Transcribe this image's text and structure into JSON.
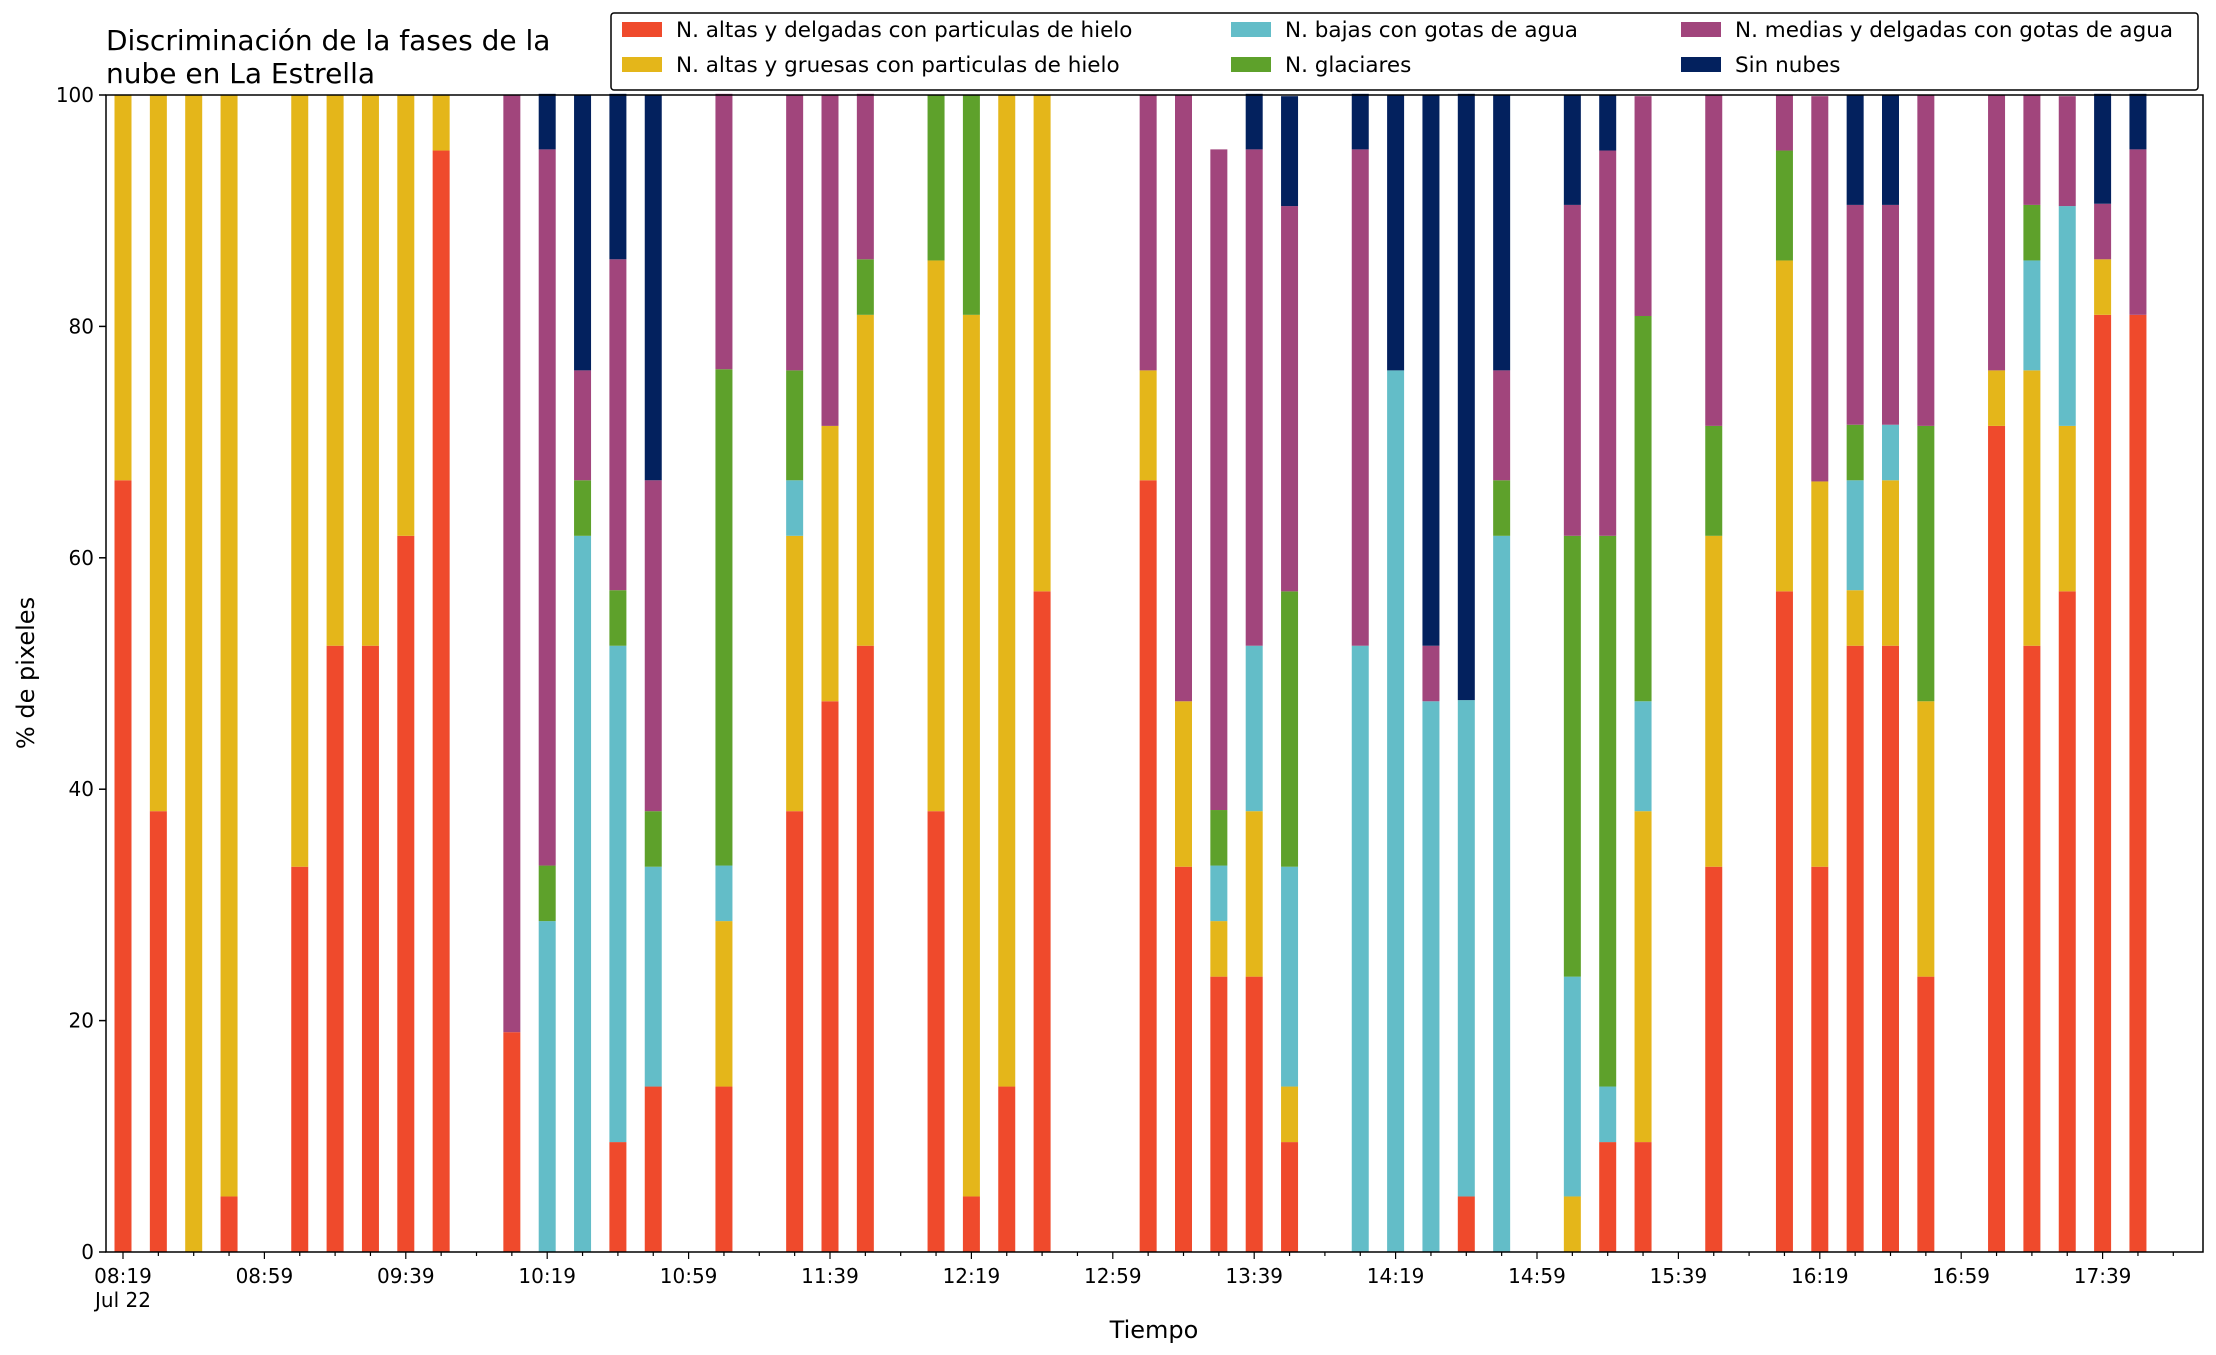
{
  "chart_data": {
    "type": "bar",
    "stacked": true,
    "title_lines": [
      "Discriminación de la fases de la",
      "nube en La Estrella"
    ],
    "xlabel": "Tiempo",
    "ylabel": "% de pixeles",
    "ylim": [
      0,
      100
    ],
    "yticks": [
      0,
      20,
      40,
      60,
      80,
      100
    ],
    "grid": false,
    "legend_position": "top-right",
    "x_start": "08:19",
    "x_step_minutes": 10,
    "xtick_labels": [
      "08:19",
      "08:59",
      "09:39",
      "10:19",
      "10:59",
      "11:39",
      "12:19",
      "12:59",
      "13:39",
      "14:19",
      "14:59",
      "15:39",
      "16:19",
      "16:59",
      "17:39"
    ],
    "xtick_sublabel": "Jul 22",
    "series": [
      {
        "name": "N. altas y delgadas con particulas de hielo",
        "color": "#EF4A2C"
      },
      {
        "name": "N. altas y gruesas con particulas de hielo",
        "color": "#E4B61A"
      },
      {
        "name": "N. bajas con gotas de agua",
        "color": "#63BDC8"
      },
      {
        "name": "N. glaciares",
        "color": "#5EA12B"
      },
      {
        "name": "N. medias y delgadas con gotas de agua",
        "color": "#A1457C"
      },
      {
        "name": "Sin nubes",
        "color": "#03215E"
      }
    ],
    "bars": [
      {
        "t": "08:19",
        "v": [
          66.7,
          33.3,
          0,
          0,
          0,
          0
        ]
      },
      {
        "t": "08:29",
        "v": [
          38.1,
          61.9,
          0,
          0,
          0,
          0
        ]
      },
      {
        "t": "08:39",
        "v": [
          0,
          100,
          0,
          0,
          0,
          0
        ]
      },
      {
        "t": "08:49",
        "v": [
          4.8,
          95.2,
          0,
          0,
          0,
          0
        ]
      },
      {
        "t": "09:09",
        "v": [
          33.3,
          66.7,
          0,
          0,
          0,
          0
        ]
      },
      {
        "t": "09:19",
        "v": [
          52.4,
          47.6,
          0,
          0,
          0,
          0
        ]
      },
      {
        "t": "09:29",
        "v": [
          52.4,
          47.6,
          0,
          0,
          0,
          0
        ]
      },
      {
        "t": "09:39",
        "v": [
          61.9,
          38.1,
          0,
          0,
          0,
          0
        ]
      },
      {
        "t": "09:49",
        "v": [
          95.2,
          4.8,
          0,
          0,
          0,
          0
        ]
      },
      {
        "t": "10:09",
        "v": [
          19,
          0,
          0,
          0,
          81,
          0
        ]
      },
      {
        "t": "10:19",
        "v": [
          0,
          0,
          28.6,
          4.8,
          61.9,
          4.8
        ]
      },
      {
        "t": "10:29",
        "v": [
          0,
          0,
          61.9,
          4.8,
          9.5,
          23.8
        ]
      },
      {
        "t": "10:39",
        "v": [
          9.5,
          0,
          42.9,
          4.8,
          28.6,
          14.3
        ]
      },
      {
        "t": "10:49",
        "v": [
          14.3,
          0,
          19,
          4.8,
          28.6,
          33.3
        ]
      },
      {
        "t": "11:09",
        "v": [
          14.3,
          14.3,
          4.8,
          42.9,
          23.8,
          0
        ]
      },
      {
        "t": "11:29",
        "v": [
          38.1,
          23.8,
          4.8,
          9.5,
          23.8,
          0
        ]
      },
      {
        "t": "11:39",
        "v": [
          47.6,
          23.8,
          0,
          0,
          28.6,
          0
        ]
      },
      {
        "t": "11:49",
        "v": [
          52.4,
          28.6,
          0,
          4.8,
          14.3,
          0
        ]
      },
      {
        "t": "12:09",
        "v": [
          38.1,
          47.6,
          0,
          14.3,
          0,
          0
        ]
      },
      {
        "t": "12:19",
        "v": [
          4.8,
          76.2,
          0,
          19,
          0,
          0
        ]
      },
      {
        "t": "12:29",
        "v": [
          14.3,
          85.7,
          0,
          0,
          0,
          0
        ]
      },
      {
        "t": "12:39",
        "v": [
          57.1,
          42.9,
          0,
          0,
          0,
          0
        ]
      },
      {
        "t": "13:09",
        "v": [
          66.7,
          9.5,
          0,
          0,
          23.8,
          0
        ]
      },
      {
        "t": "13:19",
        "v": [
          33.3,
          14.3,
          0,
          0,
          52.4,
          0
        ]
      },
      {
        "t": "13:29",
        "v": [
          23.8,
          4.8,
          4.8,
          4.8,
          57.1,
          0
        ]
      },
      {
        "t": "13:39",
        "v": [
          23.8,
          14.3,
          14.3,
          0,
          42.9,
          4.8
        ]
      },
      {
        "t": "13:49",
        "v": [
          9.5,
          4.8,
          19,
          23.8,
          33.3,
          9.5
        ]
      },
      {
        "t": "14:09",
        "v": [
          0,
          0,
          52.4,
          0,
          42.9,
          4.8
        ]
      },
      {
        "t": "14:19",
        "v": [
          0,
          0,
          76.2,
          0,
          0,
          23.8
        ]
      },
      {
        "t": "14:29",
        "v": [
          0,
          0,
          47.6,
          0,
          4.8,
          47.6
        ]
      },
      {
        "t": "14:39",
        "v": [
          4.8,
          0,
          42.9,
          0,
          0,
          52.4
        ]
      },
      {
        "t": "14:49",
        "v": [
          0,
          0,
          61.9,
          4.8,
          9.5,
          23.8
        ]
      },
      {
        "t": "15:09",
        "v": [
          0,
          4.8,
          19,
          38.1,
          28.6,
          9.5
        ]
      },
      {
        "t": "15:19",
        "v": [
          9.5,
          0,
          4.8,
          47.6,
          33.3,
          4.8
        ]
      },
      {
        "t": "15:29",
        "v": [
          9.5,
          28.6,
          9.5,
          33.3,
          19,
          0
        ]
      },
      {
        "t": "15:49",
        "v": [
          33.3,
          28.6,
          0,
          9.5,
          28.6,
          0
        ]
      },
      {
        "t": "16:09",
        "v": [
          57.1,
          28.6,
          0,
          9.5,
          4.8,
          0
        ]
      },
      {
        "t": "16:19",
        "v": [
          33.3,
          33.3,
          0,
          0,
          33.3,
          0
        ]
      },
      {
        "t": "16:29",
        "v": [
          52.4,
          4.8,
          9.5,
          4.8,
          19,
          9.5
        ]
      },
      {
        "t": "16:39",
        "v": [
          52.4,
          14.3,
          4.8,
          0,
          19,
          9.5
        ]
      },
      {
        "t": "16:49",
        "v": [
          23.8,
          23.8,
          0,
          23.8,
          28.6,
          0
        ]
      },
      {
        "t": "17:09",
        "v": [
          71.4,
          4.8,
          0,
          0,
          23.8,
          0
        ]
      },
      {
        "t": "17:19",
        "v": [
          52.4,
          23.8,
          9.5,
          4.8,
          9.5,
          0
        ]
      },
      {
        "t": "17:29",
        "v": [
          57.1,
          14.3,
          19,
          0,
          9.5,
          0
        ]
      },
      {
        "t": "17:39",
        "v": [
          81,
          4.8,
          0,
          0,
          4.8,
          9.5
        ]
      },
      {
        "t": "17:49",
        "v": [
          81,
          0,
          0,
          0,
          14.3,
          4.8
        ]
      }
    ]
  }
}
